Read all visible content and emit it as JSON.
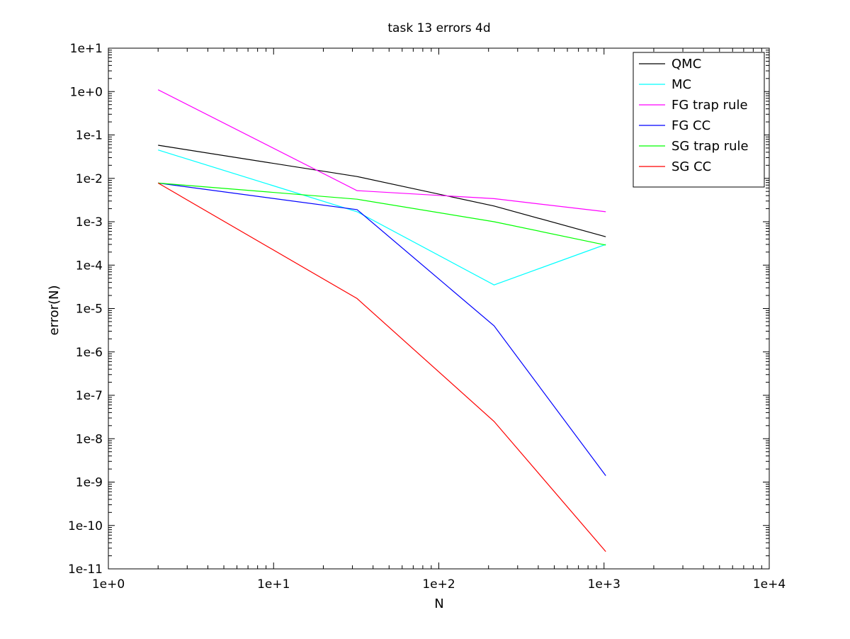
{
  "chart_data": {
    "type": "line",
    "title": "task 13 errors 4d",
    "xlabel": "N",
    "ylabel": "error(N)",
    "xscale": "log",
    "yscale": "log",
    "xlim": [
      1,
      10000
    ],
    "ylim": [
      1e-11,
      10
    ],
    "grid": false,
    "legend_position": "top-right",
    "x_ticks": [
      {
        "value": 1,
        "label": "1e+0"
      },
      {
        "value": 10,
        "label": "1e+1"
      },
      {
        "value": 100,
        "label": "1e+2"
      },
      {
        "value": 1000,
        "label": "1e+3"
      },
      {
        "value": 10000,
        "label": "1e+4"
      }
    ],
    "y_ticks": [
      {
        "value": 10,
        "label": "1e+1"
      },
      {
        "value": 1,
        "label": "1e+0"
      },
      {
        "value": 0.1,
        "label": "1e-1"
      },
      {
        "value": 0.01,
        "label": "1e-2"
      },
      {
        "value": 0.001,
        "label": "1e-3"
      },
      {
        "value": 0.0001,
        "label": "1e-4"
      },
      {
        "value": 1e-05,
        "label": "1e-5"
      },
      {
        "value": 1e-06,
        "label": "1e-6"
      },
      {
        "value": 1e-07,
        "label": "1e-7"
      },
      {
        "value": 1e-08,
        "label": "1e-8"
      },
      {
        "value": 1e-09,
        "label": "1e-9"
      },
      {
        "value": 1e-10,
        "label": "1e-10"
      },
      {
        "value": 1e-11,
        "label": "1e-11"
      }
    ],
    "x": [
      2,
      32,
      216,
      1024
    ],
    "series": [
      {
        "name": "QMC",
        "color": "#000000",
        "values": [
          0.058,
          0.011,
          0.0023,
          0.00045
        ]
      },
      {
        "name": "MC",
        "color": "#00ffff",
        "values": [
          0.045,
          0.0017,
          3.5e-05,
          0.0003
        ]
      },
      {
        "name": "FG trap rule",
        "color": "#ff00ff",
        "values": [
          1.1,
          0.0052,
          0.0034,
          0.0017
        ]
      },
      {
        "name": "FG CC",
        "color": "#0000ff",
        "values": [
          0.0078,
          0.0019,
          4e-06,
          1.4e-09
        ]
      },
      {
        "name": "SG trap rule",
        "color": "#00ff00",
        "values": [
          0.0078,
          0.0033,
          0.001,
          0.00029
        ]
      },
      {
        "name": "SG CC",
        "color": "#ff0000",
        "values": [
          0.0078,
          1.7e-05,
          2.5e-08,
          2.5e-11
        ]
      }
    ]
  }
}
